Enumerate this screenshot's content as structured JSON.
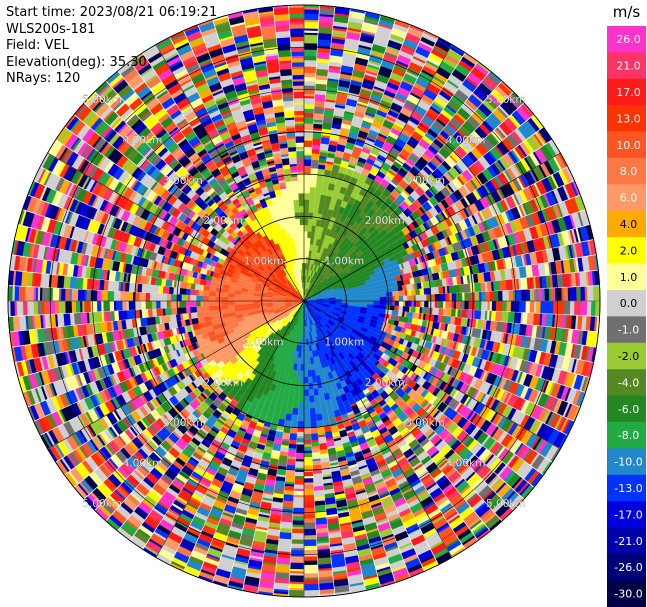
{
  "header": {
    "start_time": "Start time: 2023/08/21 06:19:21",
    "instrument": "WLS200s-181",
    "field": "Field: VEL",
    "elevation": "Elevation(deg): 35.30",
    "nrays": "NRays: 120"
  },
  "chart_data": {
    "type": "heatmap",
    "projection": "polar PPI",
    "range_rings_km": [
      "1.00km",
      "2.00km",
      "3.00km",
      "4.00km",
      "5.00km"
    ],
    "n_rays": 120,
    "colorbar": {
      "unit": "m/s",
      "ticks": [
        "26.0",
        "21.0",
        "17.0",
        "13.0",
        "10.0",
        "8.0",
        "6.0",
        "4.0",
        "2.0",
        "1.0",
        "0.0",
        "-1.0",
        "-2.0",
        "-4.0",
        "-6.0",
        "-8.0",
        "-10.0",
        "-13.0",
        "-17.0",
        "-21.0",
        "-26.0",
        "-30.0"
      ],
      "colors": [
        "#ff33cc",
        "#ff3366",
        "#ff1a1a",
        "#ff3300",
        "#ff5522",
        "#ff7744",
        "#ff9966",
        "#ffaa00",
        "#ffff00",
        "#ffff99",
        "#d0d0d0",
        "#707070",
        "#99cc33",
        "#558822",
        "#228822",
        "#22aa44",
        "#2288cc",
        "#0033ff",
        "#0000dd",
        "#0000aa",
        "#000077",
        "#000044"
      ]
    }
  }
}
